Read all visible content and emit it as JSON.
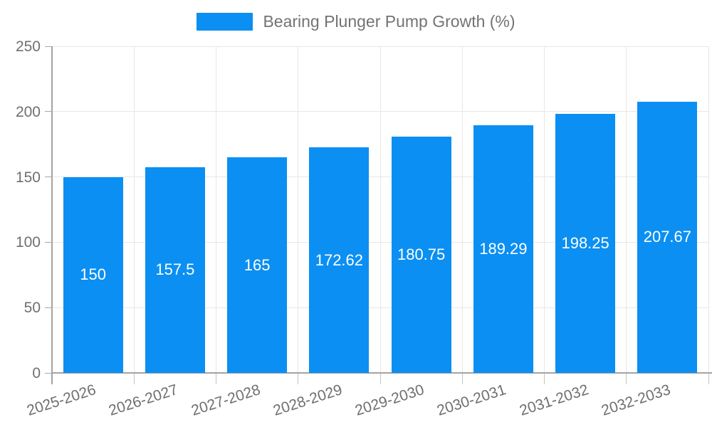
{
  "legend": {
    "label": "Bearing Plunger Pump Growth (%)"
  },
  "colors": {
    "bar": "#0b8ff2",
    "grid": "#e7e7e7",
    "axis": "#a3a3a3",
    "tick_text": "#6f6f6f",
    "bar_label_text": "#ffffff",
    "background": "#ffffff"
  },
  "chart_data": {
    "type": "bar",
    "title": "",
    "xlabel": "",
    "ylabel": "",
    "legend": "Bearing Plunger Pump Growth (%)",
    "legend_position": "top-center",
    "categories": [
      "2025-2026",
      "2026-2027",
      "2027-2028",
      "2028-2029",
      "2029-2030",
      "2030-2031",
      "2031-2032",
      "2032-2033"
    ],
    "values": [
      150,
      157.5,
      165,
      172.62,
      180.75,
      189.29,
      198.25,
      207.67
    ],
    "value_labels": [
      "150",
      "157.5",
      "165",
      "172.62",
      "180.75",
      "189.29",
      "198.25",
      "207.67"
    ],
    "ylim": [
      0,
      250
    ],
    "yticks": [
      0,
      50,
      100,
      150,
      200,
      250
    ],
    "ytick_labels": [
      "0",
      "50",
      "100",
      "150",
      "200",
      "250"
    ],
    "grid": true,
    "bar_color": "#0b8ff2",
    "value_label_color": "#ffffff"
  }
}
